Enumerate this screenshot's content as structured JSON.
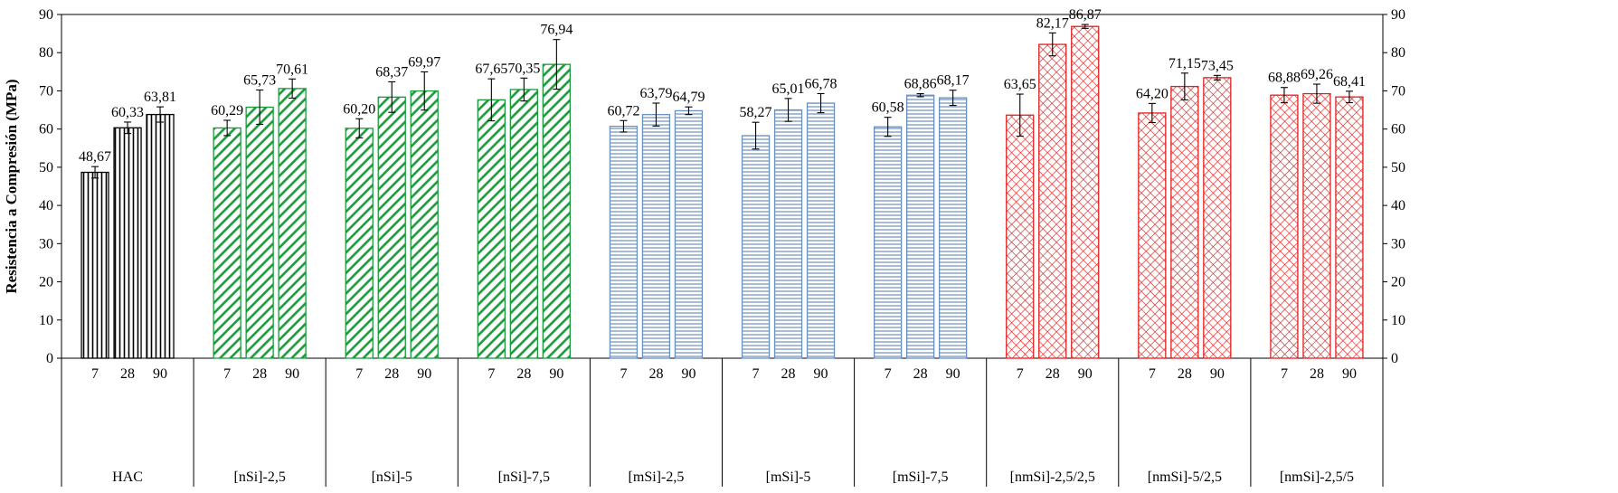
{
  "chart_data": {
    "type": "bar",
    "ylabel": "Resistencia a Compresión (MPa)",
    "ylim": [
      0,
      90
    ],
    "yticks": [
      0,
      10,
      20,
      30,
      40,
      50,
      60,
      70,
      80,
      90
    ],
    "secondary_y_axis": true,
    "grid": false,
    "legend": "none",
    "ages": [
      "7",
      "28",
      "90"
    ],
    "groups": [
      {
        "name": "HAC",
        "values": [
          48.67,
          60.33,
          63.81
        ],
        "labels": [
          "48,67",
          "60,33",
          "63,81"
        ],
        "errors": [
          1.5,
          1.5,
          2.0
        ],
        "color": "#000000",
        "pattern": "vertical"
      },
      {
        "name": "[nSi]-2,5",
        "values": [
          60.29,
          65.73,
          70.61
        ],
        "labels": [
          "60,29",
          "65,73",
          "70,61"
        ],
        "errors": [
          2.0,
          4.5,
          2.5
        ],
        "color": "#1a9a3a",
        "pattern": "diagonal"
      },
      {
        "name": "[nSi]-5",
        "values": [
          60.2,
          68.37,
          69.97
        ],
        "labels": [
          "60,20",
          "68,37",
          "69,97"
        ],
        "errors": [
          2.5,
          4.0,
          5.0
        ],
        "color": "#1a9a3a",
        "pattern": "diagonal"
      },
      {
        "name": "[nSi]-7,5",
        "values": [
          67.65,
          70.35,
          76.94
        ],
        "labels": [
          "67,65",
          "70,35",
          "76,94"
        ],
        "errors": [
          5.5,
          3.0,
          6.5
        ],
        "color": "#1a9a3a",
        "pattern": "diagonal"
      },
      {
        "name": "[mSi]-2,5",
        "values": [
          60.72,
          63.79,
          64.79
        ],
        "labels": [
          "60,72",
          "63,79",
          "64,79"
        ],
        "errors": [
          1.5,
          3.0,
          1.0
        ],
        "color": "#6a90c0",
        "pattern": "horizontal"
      },
      {
        "name": "[mSi]-5",
        "values": [
          58.27,
          65.01,
          66.78
        ],
        "labels": [
          "58,27",
          "65,01",
          "66,78"
        ],
        "errors": [
          3.5,
          3.0,
          2.5
        ],
        "color": "#6a90c0",
        "pattern": "horizontal"
      },
      {
        "name": "[mSi]-7,5",
        "values": [
          60.58,
          68.86,
          68.17
        ],
        "labels": [
          "60,58",
          "68,86",
          "68,17"
        ],
        "errors": [
          2.5,
          0.4,
          2.0
        ],
        "color": "#6a90c0",
        "pattern": "horizontal"
      },
      {
        "name": "[nmSi]-2,5/2,5",
        "values": [
          63.65,
          82.17,
          86.87
        ],
        "labels": [
          "63,65",
          "82,17",
          "86,87"
        ],
        "errors": [
          5.5,
          3.0,
          0.5
        ],
        "color": "#e02020",
        "pattern": "crosshatch"
      },
      {
        "name": "[nmSi]-5/2,5",
        "values": [
          64.2,
          71.15,
          73.45
        ],
        "labels": [
          "64,20",
          "71,15",
          "73,45"
        ],
        "errors": [
          2.5,
          3.5,
          0.6
        ],
        "color": "#e02020",
        "pattern": "crosshatch"
      },
      {
        "name": "[nmSi]-2,5/5",
        "values": [
          68.88,
          69.26,
          68.41
        ],
        "labels": [
          "68,88",
          "69,26",
          "68,41"
        ],
        "errors": [
          2.0,
          2.5,
          1.5
        ],
        "color": "#e02020",
        "pattern": "crosshatch"
      }
    ]
  }
}
